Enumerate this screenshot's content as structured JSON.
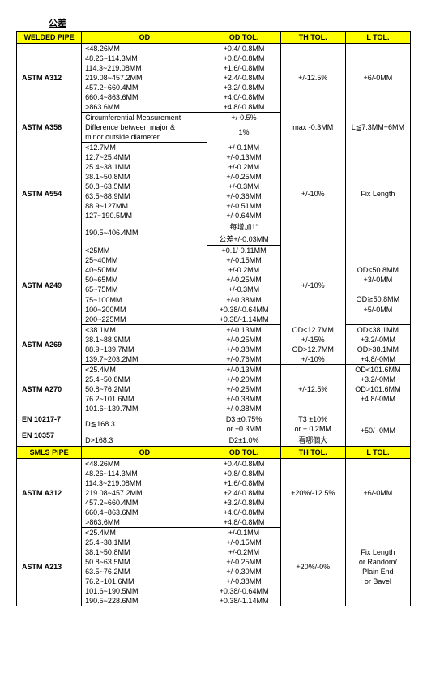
{
  "title": "公差",
  "headers1": [
    "WELDED PIPE",
    "OD",
    "OD TOL.",
    "TH TOL.",
    "L TOL."
  ],
  "headers2": [
    "SMLS PIPE",
    "OD",
    "OD TOL.",
    "TH TOL.",
    "L TOL."
  ],
  "s1": {
    "spec": "ASTM A312",
    "od": [
      "<48.26MM",
      "48.26~114.3MM",
      "114.3~219.08MM",
      "219.08~457.2MM",
      "457.2~660.4MM",
      "660.4~863.6MM",
      ">863.6MM"
    ],
    "odtol": [
      "+0.4/-0.8MM",
      "+0.8/-0.8MM",
      "+1.6/-0.8MM",
      "+2.4/-0.8MM",
      "+3.2/-0.8MM",
      "+4.0/-0.8MM",
      "+4.8/-0.8MM"
    ],
    "thtol": "+/-12.5%",
    "ltol": "+6/-0MM"
  },
  "s2": {
    "spec": "ASTM A358",
    "od1": "Circumferential Measurement",
    "od2": "Difference between major &",
    "od3": "minor outside diameter",
    "odtol1": "+/-0.5%",
    "odtol2": "1%",
    "thtol": "max -0.3MM",
    "ltol": "L≦7.3MM+6MM"
  },
  "s3": {
    "spec": "ASTM A554",
    "od": [
      "<12.7MM",
      "12.7~25.4MM",
      "25.4~38.1MM",
      "38.1~50.8MM",
      "50.8~63.5MM",
      "63.5~88.9MM",
      "88.9~127MM",
      "127~190.5MM",
      "190.5~406.4MM"
    ],
    "odtol": [
      "+/-0.1MM",
      "+/-0.13MM",
      "+/-0.2MM",
      "+/-0.25MM",
      "+/-0.3MM",
      "+/-0.36MM",
      "+/-0.51MM",
      "+/-0.64MM"
    ],
    "odtol9a": "每增加1\"",
    "odtol9b": "公差+/-0.03MM",
    "thtol": "+/-10%",
    "ltol": "Fix Length"
  },
  "s4": {
    "spec": "ASTM A249",
    "od": [
      "<25MM",
      "25~40MM",
      "40~50MM",
      "50~65MM",
      "65~75MM",
      "75~100MM",
      "100~200MM",
      "200~225MM"
    ],
    "odtol": [
      "+0.1/-0.11MM",
      "+/-0.15MM",
      "+/-0.2MM",
      "+/-0.25MM",
      "+/-0.3MM",
      "+/-0.38MM",
      "+0.38/-0.64MM",
      "+0.38/-1.14MM"
    ],
    "thtol": "+/-10%",
    "ltol1": "OD<50.8MM",
    "ltol2": "+3/-0MM",
    "ltol3": "OD≧50.8MM",
    "ltol4": "+5/-0MM"
  },
  "s5": {
    "spec": "ASTM A269",
    "od": [
      "<38.1MM",
      "38.1~88.9MM",
      "88.9~139.7MM",
      "139.7~203.2MM"
    ],
    "odtol": [
      "+/-0.13MM",
      "+/-0.25MM",
      "+/-0.38MM",
      "+/-0.76MM"
    ],
    "thtol": [
      "OD<12.7MM",
      "+/-15%",
      "OD>12.7MM",
      "+/-10%"
    ],
    "ltol": [
      "OD<38.1MM",
      "+3.2/-0MM",
      "OD>38.1MM",
      "+4.8/-0MM"
    ]
  },
  "s6": {
    "spec": "ASTM A270",
    "od": [
      "<25.4MM",
      "25.4~50.8MM",
      "50.8~76.2MM",
      "76.2~101.6MM",
      "101.6~139.7MM"
    ],
    "odtol": [
      "+/-0.13MM",
      "+/-0.20MM",
      "+/-0.25MM",
      "+/-0.38MM",
      "+/-0.38MM"
    ],
    "thtol": "+/-12.5%",
    "ltol": [
      "OD<101.6MM",
      "+3.2/-0MM",
      "OD>101.6MM",
      "+4.8/-0MM"
    ]
  },
  "s7": {
    "spec1": "EN 10217-7",
    "spec2": "EN 10357",
    "od1": "D≦168.3",
    "od2": "D>168.3",
    "odtol1a": "D3 ±0.75%",
    "odtol1b": "or ±0.3MM",
    "odtol2": "D2±1.0%",
    "thtol1": "T3 ±10%",
    "thtol2": "or ± 0.2MM",
    "thtol3": "看哪個大",
    "ltol": "+50/ -0MM"
  },
  "s8": {
    "spec": "ASTM A312",
    "od": [
      "<48.26MM",
      "48.26~114.3MM",
      "114.3~219.08MM",
      "219.08~457.2MM",
      "457.2~660.4MM",
      "660.4~863.6MM",
      ">863.6MM"
    ],
    "odtol": [
      "+0.4/-0.8MM",
      "+0.8/-0.8MM",
      "+1.6/-0.8MM",
      "+2.4/-0.8MM",
      "+3.2/-0.8MM",
      "+4.0/-0.8MM",
      "+4.8/-0.8MM"
    ],
    "thtol": "+20%/-12.5%",
    "ltol": "+6/-0MM"
  },
  "s9": {
    "spec": "ASTM A213",
    "od": [
      "<25.4MM",
      "25.4~38.1MM",
      "38.1~50.8MM",
      "50.8~63.5MM",
      "63.5~76.2MM",
      "76.2~101.6MM",
      "101.6~190.5MM",
      "190.5~228.6MM"
    ],
    "odtol": [
      "+/-0.1MM",
      "+/-0.15MM",
      "+/-0.2MM",
      "+/-0.25MM",
      "+/-0.30MM",
      "+/-0.38MM",
      "+0.38/-0.64MM",
      "+0.38/-1.14MM"
    ],
    "thtol": "+20%/-0%",
    "ltol": [
      "Fix Length",
      "or Random/",
      "Plain End",
      "or Bavel"
    ]
  }
}
